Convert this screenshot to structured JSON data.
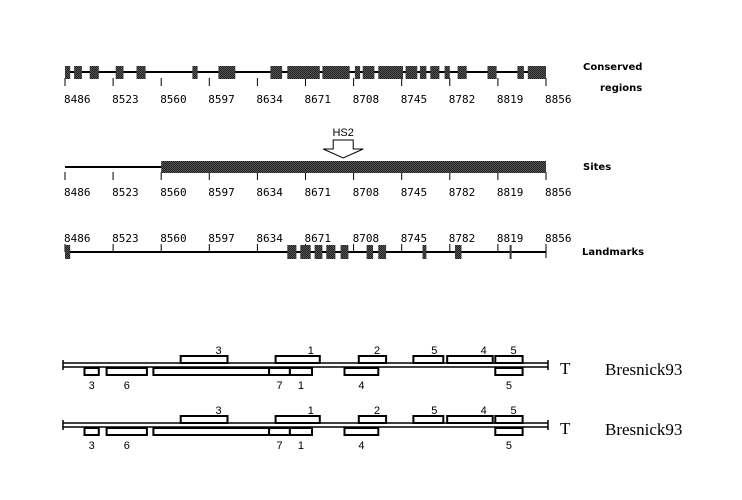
{
  "axis": {
    "start": 8486,
    "end": 8856,
    "ticks": [
      8486,
      8523,
      8560,
      8597,
      8634,
      8671,
      8708,
      8745,
      8782,
      8819,
      8856
    ]
  },
  "colors": {
    "block": "#333333",
    "line": "#000000"
  },
  "tracks": {
    "conserved": {
      "label_line1": "Conserved",
      "label_line2": "regions",
      "blocks": [
        [
          8486,
          8490
        ],
        [
          8493,
          8499
        ],
        [
          8505,
          8512
        ],
        [
          8525,
          8531
        ],
        [
          8541,
          8548
        ],
        [
          8584,
          8588
        ],
        [
          8604,
          8617
        ],
        [
          8644,
          8653
        ],
        [
          8657,
          8682
        ],
        [
          8684,
          8705
        ],
        [
          8709,
          8713
        ],
        [
          8715,
          8724
        ],
        [
          8727,
          8746
        ],
        [
          8748,
          8757
        ],
        [
          8759,
          8764
        ],
        [
          8767,
          8774
        ],
        [
          8778,
          8782
        ],
        [
          8788,
          8795
        ],
        [
          8811,
          8818
        ],
        [
          8834,
          8839
        ],
        [
          8842,
          8856
        ]
      ]
    },
    "sites": {
      "label": "Sites",
      "blocks": [
        [
          8560,
          8856
        ]
      ],
      "arrow": {
        "label": "HS2",
        "position": 8700
      }
    },
    "landmarks": {
      "label": "Landmarks",
      "blocks": [
        [
          8486,
          8490
        ],
        [
          8657,
          8664
        ],
        [
          8667,
          8675
        ],
        [
          8678,
          8684
        ],
        [
          8687,
          8694
        ],
        [
          8698,
          8704
        ],
        [
          8718,
          8723
        ],
        [
          8727,
          8733
        ],
        [
          8761,
          8764
        ],
        [
          8786,
          8791
        ],
        [
          8828,
          8829
        ]
      ]
    }
  },
  "factor_tracks": [
    {
      "label": "Bresnick93",
      "glyph": "T",
      "top": [
        {
          "r": [
            8575,
            8611
          ],
          "n": "3"
        },
        {
          "r": [
            8648,
            8682
          ],
          "n": "1"
        },
        {
          "r": [
            8712,
            8733
          ],
          "n": "2"
        },
        {
          "r": [
            8754,
            8777
          ],
          "n": "5"
        },
        {
          "r": [
            8780,
            8815
          ],
          "n": "4"
        },
        {
          "r": [
            8817,
            8838
          ],
          "n": "5"
        }
      ],
      "bottom": [
        {
          "r": [
            8501,
            8512
          ],
          "n": "3"
        },
        {
          "r": [
            8518,
            8549
          ],
          "n": "6"
        },
        {
          "r": [
            8554,
            8643
          ],
          "n": ""
        },
        {
          "r": [
            8643,
            8659
          ],
          "n": "7"
        },
        {
          "r": [
            8659,
            8676
          ],
          "n": "1"
        },
        {
          "r": [
            8701,
            8727
          ],
          "n": "4"
        },
        {
          "r": [
            8817,
            8838
          ],
          "n": "5"
        }
      ]
    },
    {
      "label": "Bresnick93",
      "glyph": "T",
      "top": [
        {
          "r": [
            8575,
            8611
          ],
          "n": "3"
        },
        {
          "r": [
            8648,
            8682
          ],
          "n": "1"
        },
        {
          "r": [
            8712,
            8733
          ],
          "n": "2"
        },
        {
          "r": [
            8754,
            8777
          ],
          "n": "5"
        },
        {
          "r": [
            8780,
            8815
          ],
          "n": "4"
        },
        {
          "r": [
            8817,
            8838
          ],
          "n": "5"
        }
      ],
      "bottom": [
        {
          "r": [
            8501,
            8512
          ],
          "n": "3"
        },
        {
          "r": [
            8518,
            8549
          ],
          "n": "6"
        },
        {
          "r": [
            8554,
            8643
          ],
          "n": ""
        },
        {
          "r": [
            8643,
            8659
          ],
          "n": "7"
        },
        {
          "r": [
            8659,
            8676
          ],
          "n": "1"
        },
        {
          "r": [
            8701,
            8727
          ],
          "n": "4"
        },
        {
          "r": [
            8817,
            8838
          ],
          "n": "5"
        }
      ]
    }
  ]
}
